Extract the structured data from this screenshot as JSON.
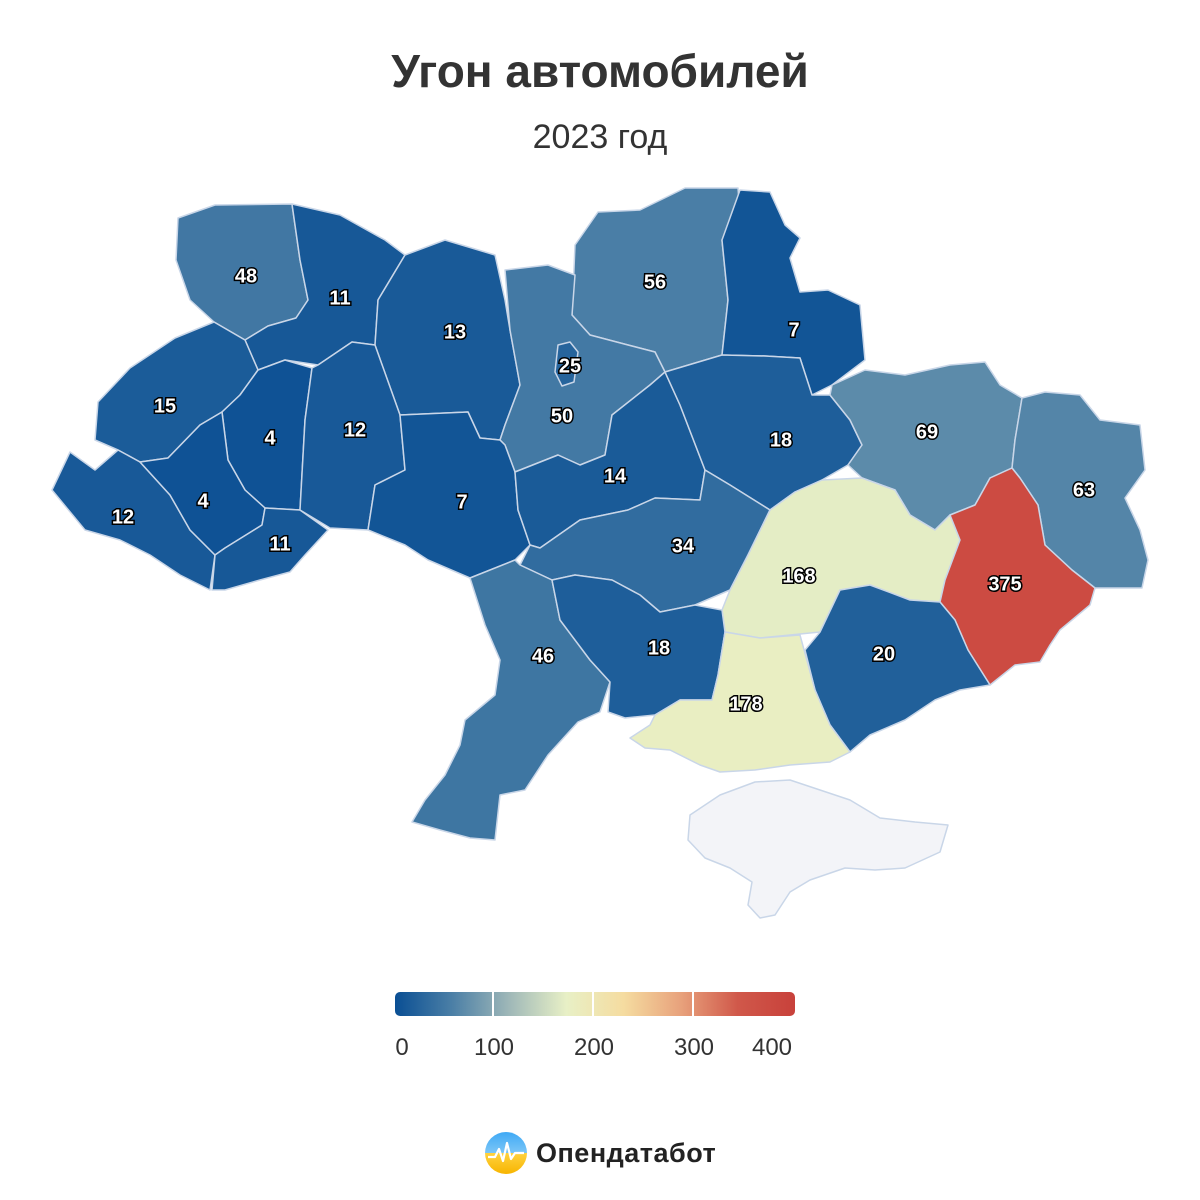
{
  "title": "Угон автомобилей",
  "subtitle": "2023 год",
  "brand": {
    "name": "Опендатабот",
    "icon": "opendatabot-logo-icon"
  },
  "colors": {
    "scale": [
      "#0a4f94",
      "#4b7fa6",
      "#9fb8b8",
      "#e8f0c6",
      "#f5dca0",
      "#e8a27c",
      "#d0584a",
      "#c8413b"
    ],
    "no_data": "#f3f4f8"
  },
  "legend": {
    "min": 0,
    "max": 400,
    "ticks": [
      "0",
      "100",
      "200",
      "300",
      "400"
    ]
  },
  "regions": [
    {
      "id": "volyn",
      "value": 48
    },
    {
      "id": "rivne",
      "value": 11
    },
    {
      "id": "zhytomyr",
      "value": 13
    },
    {
      "id": "kyiv-oblast",
      "value": 50
    },
    {
      "id": "kyiv-city",
      "value": 25
    },
    {
      "id": "chernihiv",
      "value": 56
    },
    {
      "id": "sumy",
      "value": 7
    },
    {
      "id": "lviv",
      "value": 15
    },
    {
      "id": "ternopil",
      "value": 4
    },
    {
      "id": "khmelnytskyi",
      "value": 12
    },
    {
      "id": "vinnytsia",
      "value": 7
    },
    {
      "id": "cherkasy",
      "value": 14
    },
    {
      "id": "poltava",
      "value": 18
    },
    {
      "id": "kharkiv",
      "value": 69
    },
    {
      "id": "luhansk",
      "value": 63
    },
    {
      "id": "zakarpattia",
      "value": 12
    },
    {
      "id": "ivano-frankivsk",
      "value": 4
    },
    {
      "id": "chernivtsi",
      "value": 11
    },
    {
      "id": "kirovohrad",
      "value": 34
    },
    {
      "id": "dnipropetrovsk",
      "value": 168
    },
    {
      "id": "donetsk",
      "value": 375
    },
    {
      "id": "odesa",
      "value": 46
    },
    {
      "id": "mykolaiv",
      "value": 18
    },
    {
      "id": "kherson",
      "value": 178
    },
    {
      "id": "zaporizhzhia",
      "value": 20
    },
    {
      "id": "crimea",
      "value": null
    }
  ]
}
